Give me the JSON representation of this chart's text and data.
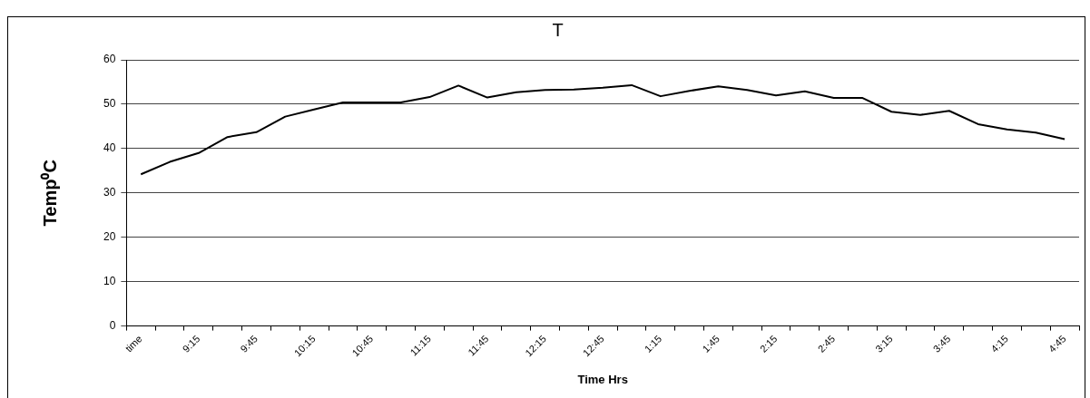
{
  "chart_data": {
    "type": "line",
    "title": "T",
    "xlabel": "Time Hrs",
    "ylabel": "Temp⁰C",
    "categories": [
      "time",
      null,
      "9:15",
      null,
      "9:45",
      null,
      "10:15",
      null,
      "10:45",
      null,
      "11:15",
      null,
      "11:45",
      null,
      "12:15",
      null,
      "12:45",
      null,
      "1:15",
      null,
      "1:45",
      null,
      "2:15",
      null,
      "2:45",
      null,
      "3:15",
      null,
      "3:45",
      null,
      "4:15",
      null,
      "4:45"
    ],
    "series": [
      {
        "color": "#000000",
        "values": [
          34.2,
          37.0,
          39.0,
          42.6,
          43.7,
          47.2,
          48.8,
          50.4,
          50.4,
          50.4,
          51.6,
          54.2,
          51.5,
          52.7,
          53.2,
          53.3,
          53.7,
          54.3,
          51.8,
          53.0,
          54.0,
          53.2,
          52.0,
          52.9,
          51.4,
          51.4,
          48.3,
          47.6,
          48.5,
          45.5,
          44.3,
          43.6,
          42.1
        ]
      }
    ],
    "ylim": [
      0,
      60
    ],
    "yticks": [
      0,
      10,
      20,
      30,
      40,
      50,
      60
    ],
    "grid": "y",
    "legend": false,
    "marker": "none",
    "line_style": "solid"
  }
}
